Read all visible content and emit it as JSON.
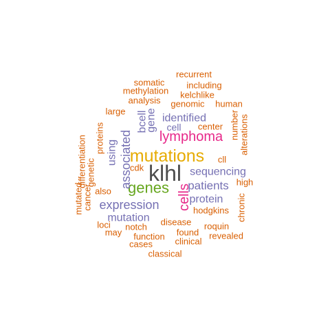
{
  "chart_data": {
    "type": "wordcloud",
    "palette": {
      "top": "#4d4d4d",
      "second": "#e6ab02",
      "third": "#66a61e",
      "fourth": "#e7298a",
      "fifth": "#7570b3",
      "base": "#d95f02"
    },
    "words": [
      {
        "text": "klhl",
        "tier": "top",
        "frequency": 100
      },
      {
        "text": "mutations",
        "tier": "second",
        "frequency": 80
      },
      {
        "text": "genes",
        "tier": "third",
        "frequency": 70
      },
      {
        "text": "lymphoma",
        "tier": "fourth",
        "frequency": 60
      },
      {
        "text": "cells",
        "tier": "fourth",
        "frequency": 58
      },
      {
        "text": "expression",
        "tier": "fifth",
        "frequency": 52
      },
      {
        "text": "associated",
        "tier": "fifth",
        "frequency": 51
      },
      {
        "text": "patients",
        "tier": "fifth",
        "frequency": 50
      },
      {
        "text": "identified",
        "tier": "fifth",
        "frequency": 48
      },
      {
        "text": "sequencing",
        "tier": "fifth",
        "frequency": 48
      },
      {
        "text": "protein",
        "tier": "fifth",
        "frequency": 48
      },
      {
        "text": "mutation",
        "tier": "fifth",
        "frequency": 48
      },
      {
        "text": "bcell",
        "tier": "fifth",
        "frequency": 48
      },
      {
        "text": "gene",
        "tier": "fifth",
        "frequency": 48
      },
      {
        "text": "using",
        "tier": "fifth",
        "frequency": 45
      },
      {
        "text": "cell",
        "tier": "fifth",
        "frequency": 45
      },
      {
        "text": "recurrent",
        "tier": "base",
        "frequency": 30
      },
      {
        "text": "somatic",
        "tier": "base",
        "frequency": 30
      },
      {
        "text": "including",
        "tier": "base",
        "frequency": 30
      },
      {
        "text": "methylation",
        "tier": "base",
        "frequency": 30
      },
      {
        "text": "kelchlike",
        "tier": "base",
        "frequency": 30
      },
      {
        "text": "analysis",
        "tier": "base",
        "frequency": 30
      },
      {
        "text": "genomic",
        "tier": "base",
        "frequency": 30
      },
      {
        "text": "human",
        "tier": "base",
        "frequency": 30
      },
      {
        "text": "large",
        "tier": "base",
        "frequency": 30
      },
      {
        "text": "center",
        "tier": "base",
        "frequency": 30
      },
      {
        "text": "number",
        "tier": "base",
        "frequency": 30
      },
      {
        "text": "alterations",
        "tier": "base",
        "frequency": 30
      },
      {
        "text": "differentiation",
        "tier": "base",
        "frequency": 30
      },
      {
        "text": "proteins",
        "tier": "base",
        "frequency": 30
      },
      {
        "text": "genetic",
        "tier": "base",
        "frequency": 30
      },
      {
        "text": "cancer",
        "tier": "base",
        "frequency": 30
      },
      {
        "text": "mutated",
        "tier": "base",
        "frequency": 30
      },
      {
        "text": "cdk",
        "tier": "base",
        "frequency": 30
      },
      {
        "text": "cll",
        "tier": "base",
        "frequency": 30
      },
      {
        "text": "high",
        "tier": "base",
        "frequency": 30
      },
      {
        "text": "also",
        "tier": "base",
        "frequency": 30
      },
      {
        "text": "hodgkins",
        "tier": "base",
        "frequency": 30
      },
      {
        "text": "chronic",
        "tier": "base",
        "frequency": 30
      },
      {
        "text": "disease",
        "tier": "base",
        "frequency": 30
      },
      {
        "text": "roquin",
        "tier": "base",
        "frequency": 30
      },
      {
        "text": "loci",
        "tier": "base",
        "frequency": 30
      },
      {
        "text": "notch",
        "tier": "base",
        "frequency": 30
      },
      {
        "text": "found",
        "tier": "base",
        "frequency": 30
      },
      {
        "text": "revealed",
        "tier": "base",
        "frequency": 30
      },
      {
        "text": "may",
        "tier": "base",
        "frequency": 30
      },
      {
        "text": "function",
        "tier": "base",
        "frequency": 30
      },
      {
        "text": "clinical",
        "tier": "base",
        "frequency": 30
      },
      {
        "text": "cases",
        "tier": "base",
        "frequency": 30
      },
      {
        "text": "classical",
        "tier": "base",
        "frequency": 30
      }
    ]
  }
}
